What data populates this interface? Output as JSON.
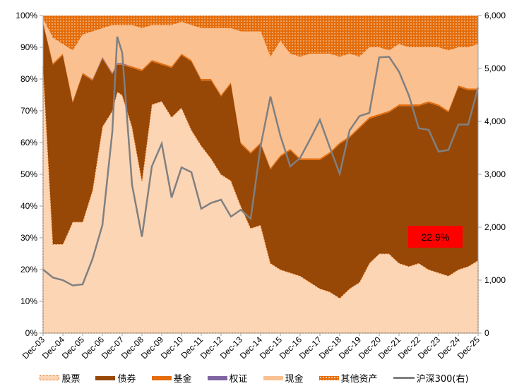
{
  "chart_data": {
    "type": "area",
    "stacked": true,
    "x_tick_labels": [
      "Dec-03",
      "Dec-04",
      "Dec-05",
      "Dec-06",
      "Dec-07",
      "Dec-08",
      "Dec-09",
      "Dec-10",
      "Dec-11",
      "Dec-12",
      "Dec-13",
      "Dec-14",
      "Dec-15",
      "Dec-16",
      "Dec-17",
      "Dec-18",
      "Dec-19",
      "Dec-20",
      "Dec-21",
      "Dec-22",
      "Dec-23",
      "Dec-24",
      "Dec-25"
    ],
    "y_left_ticks": [
      "0%",
      "10%",
      "20%",
      "30%",
      "40%",
      "50%",
      "60%",
      "70%",
      "80%",
      "90%",
      "100%"
    ],
    "y_left_range": [
      0,
      100
    ],
    "y_right_ticks": [
      "0",
      "1,000",
      "2,000",
      "3,000",
      "4,000",
      "5,000",
      "6,000"
    ],
    "y_right_range": [
      0,
      6000
    ],
    "dates": [
      "2003-12",
      "2004-06",
      "2004-12",
      "2005-06",
      "2005-12",
      "2006-06",
      "2006-12",
      "2007-06",
      "2007-09",
      "2007-12",
      "2008-06",
      "2008-12",
      "2009-06",
      "2009-12",
      "2010-06",
      "2010-12",
      "2011-06",
      "2011-12",
      "2012-06",
      "2012-12",
      "2013-06",
      "2013-12",
      "2014-06",
      "2014-12",
      "2015-06",
      "2015-12",
      "2016-06",
      "2016-12",
      "2017-06",
      "2017-12",
      "2018-06",
      "2018-12",
      "2019-06",
      "2019-12",
      "2020-06",
      "2020-12",
      "2021-06",
      "2021-12",
      "2022-06",
      "2022-12",
      "2023-06",
      "2023-12",
      "2024-06",
      "2024-12",
      "2025-06",
      "2025-12"
    ],
    "series": [
      {
        "name": "股票",
        "color": "#FCD5B5",
        "values": [
          84,
          28,
          28,
          35,
          35,
          45,
          65,
          70,
          76,
          75,
          65,
          48,
          72,
          73,
          68,
          71,
          64,
          59,
          55,
          50,
          48,
          40,
          33,
          34,
          22,
          20,
          19,
          18,
          16,
          14,
          13,
          11,
          14,
          16,
          22,
          25,
          25,
          22,
          21,
          22,
          20,
          19,
          18,
          20,
          21,
          22.9
        ]
      },
      {
        "name": "债券",
        "color": "#974706",
        "values": [
          13.5,
          56.5,
          59.5,
          37.5,
          46.5,
          34.5,
          21.5,
          11.5,
          8.5,
          9.5,
          18.5,
          34.5,
          13.5,
          11.5,
          15.5,
          16.5,
          21.5,
          20.5,
          24.5,
          24.5,
          30.5,
          19.5,
          23.5,
          25.5,
          29.5,
          35.5,
          38.5,
          36.5,
          38.5,
          40.5,
          43.5,
          48.5,
          47.5,
          48.5,
          45.5,
          43.5,
          44.5,
          49.5,
          50.5,
          49.5,
          52.5,
          52.5,
          51.5,
          57.5,
          55.5,
          53.6
        ]
      },
      {
        "name": "基金",
        "color": "#E46C0A",
        "values": [
          0.5,
          0.5,
          0.5,
          0.5,
          0.5,
          0.3,
          0.2,
          0.2,
          0.2,
          0.2,
          0.5,
          0.5,
          0.5,
          0.5,
          0.5,
          0.5,
          0.5,
          0.5,
          0.5,
          0.5,
          0.5,
          0.5,
          0.5,
          0.5,
          0.5,
          0.5,
          0.5,
          0.5,
          0.5,
          0.5,
          0.5,
          0.5,
          0.5,
          0.5,
          0.5,
          0.5,
          0.5,
          0.5,
          0.5,
          0.5,
          0.5,
          0.5,
          0.5,
          0.5,
          0.5,
          0.5
        ]
      },
      {
        "name": "权证",
        "color": "#8064A2",
        "values": [
          0,
          0,
          0,
          0,
          0,
          0.2,
          0.3,
          0.3,
          0.3,
          0.3,
          0,
          0,
          0,
          0,
          0,
          0,
          0,
          0,
          0,
          0,
          0,
          0,
          0,
          0,
          0,
          0,
          0,
          0,
          0,
          0,
          0,
          0,
          0,
          0,
          0,
          0,
          0,
          0,
          0,
          0,
          0,
          0,
          0,
          0,
          0,
          0
        ]
      },
      {
        "name": "现金",
        "color": "#FAC090",
        "values": [
          1,
          8,
          3,
          16,
          12,
          15,
          9,
          15,
          12,
          12,
          13,
          13,
          11,
          12,
          13,
          10,
          11,
          16,
          16,
          21,
          17,
          35,
          38,
          35,
          35,
          36,
          30,
          32,
          33,
          33,
          31,
          27,
          26,
          22,
          22,
          21,
          19,
          19,
          18,
          18,
          17,
          18,
          19,
          12,
          13,
          14
        ]
      },
      {
        "name": "其他资产",
        "color": "#E46C0A",
        "values": [
          1,
          7,
          9,
          11,
          6,
          5,
          4,
          3,
          3,
          3,
          3,
          4,
          3,
          3,
          3,
          2,
          3,
          4,
          4,
          4,
          4,
          5,
          5,
          5,
          13,
          8,
          12,
          13,
          12,
          12,
          12,
          13,
          12,
          13,
          10,
          10,
          11,
          9,
          10,
          10,
          10,
          10,
          11,
          10,
          10,
          9
        ]
      }
    ],
    "line": {
      "name": "沪深300(右)",
      "color": "#808080",
      "axis": "right",
      "values": [
        1200,
        1050,
        1000,
        900,
        920,
        1400,
        2040,
        3800,
        5600,
        5300,
        2800,
        1820,
        3150,
        3580,
        2560,
        3130,
        3040,
        2350,
        2460,
        2520,
        2200,
        2330,
        2160,
        3530,
        4470,
        3730,
        3150,
        3310,
        3660,
        4030,
        3510,
        3010,
        3830,
        4100,
        4160,
        5210,
        5220,
        4940,
        4490,
        3870,
        3840,
        3430,
        3460,
        3940,
        3940,
        4640
      ]
    },
    "annotation": {
      "text": "22.9%",
      "color": "#FF0000"
    },
    "legend_position": "bottom",
    "grid": false
  },
  "legend": [
    {
      "label": "股票",
      "color": "#FCD5B5",
      "pattern": "dotted-border"
    },
    {
      "label": "债券",
      "color": "#974706"
    },
    {
      "label": "基金",
      "color": "#E46C0A"
    },
    {
      "label": "权证",
      "color": "#8064A2"
    },
    {
      "label": "现金",
      "color": "#FAC090"
    },
    {
      "label": "其他资产",
      "color": "#E46C0A",
      "pattern": "dots"
    },
    {
      "label": "沪深300(右)",
      "color": "#808080",
      "pattern": "line"
    }
  ]
}
